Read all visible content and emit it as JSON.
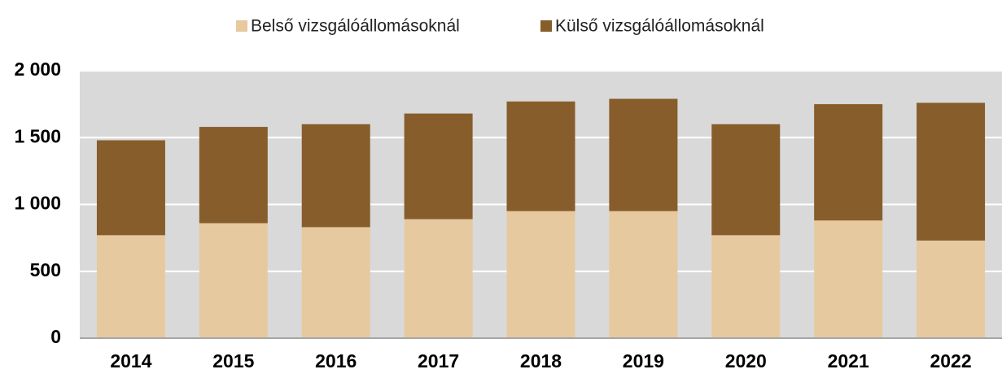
{
  "chart_data": {
    "type": "stacked_bar",
    "categories": [
      "2014",
      "2015",
      "2016",
      "2017",
      "2018",
      "2019",
      "2020",
      "2021",
      "2022"
    ],
    "series": [
      {
        "name": "Belső vizsgálóállomásoknál",
        "color": "#e6c99e",
        "values": [
          770,
          860,
          830,
          890,
          950,
          950,
          770,
          880,
          730
        ]
      },
      {
        "name": "Külső vizsgálóállomásoknál",
        "color": "#875d2b",
        "values": [
          710,
          720,
          770,
          790,
          820,
          840,
          830,
          870,
          1030
        ]
      }
    ],
    "ylim": [
      0,
      2000
    ],
    "yticks": [
      0,
      500,
      {
        "value": 1000,
        "label": "1 000"
      },
      {
        "value": 1500,
        "label": "1 500"
      },
      {
        "value": 2000,
        "label": "2 000"
      }
    ],
    "grid": true,
    "legend": "top"
  }
}
